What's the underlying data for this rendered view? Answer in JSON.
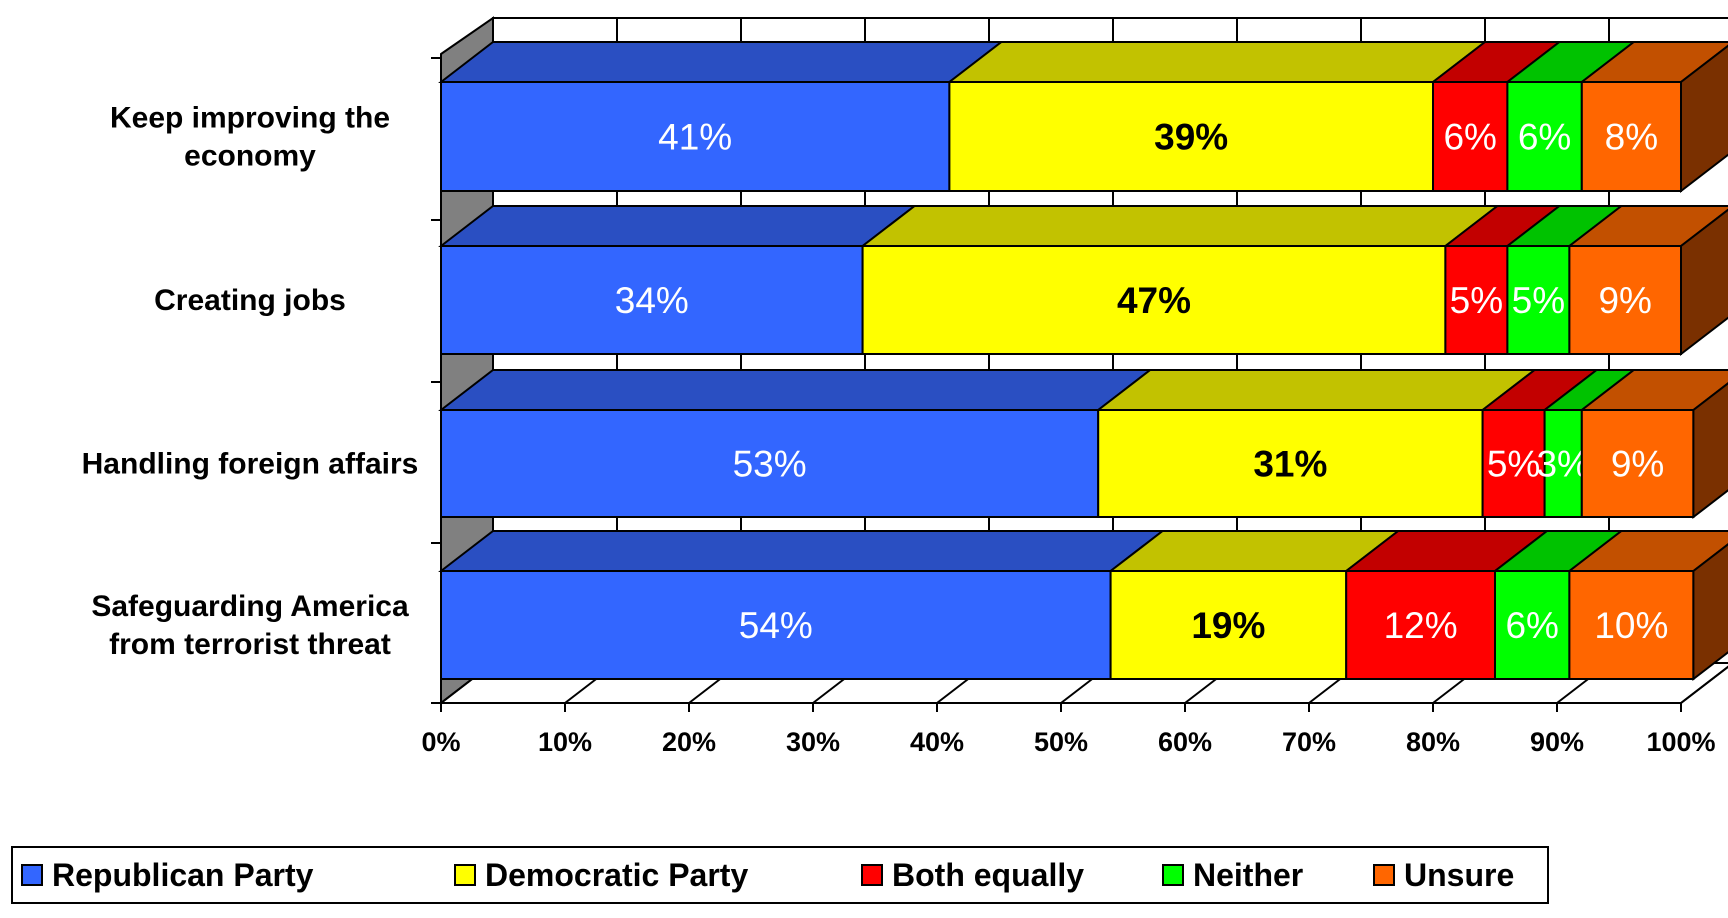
{
  "chart_data": {
    "type": "bar",
    "orientation": "horizontal",
    "stacked": true,
    "percent_stacked": true,
    "three_d": true,
    "categories": [
      [
        "Keep improving the",
        "economy"
      ],
      [
        "Creating jobs"
      ],
      [
        "Handling foreign affairs"
      ],
      [
        "Safeguarding America",
        "from terrorist threat"
      ]
    ],
    "series": [
      {
        "name": "Republican Party",
        "color": "#3366FF",
        "top_color": "#2A4FC2",
        "label_color": "#FFFFFF",
        "values": [
          41,
          34,
          53,
          54
        ],
        "labels": [
          "41%",
          "34%",
          "53%",
          "54%"
        ]
      },
      {
        "name": "Democratic Party",
        "color": "#FFFF00",
        "top_color": "#C2C200",
        "label_color": "#000000",
        "values": [
          39,
          47,
          31,
          19
        ],
        "labels": [
          "39%",
          "47%",
          "31%",
          "19%"
        ]
      },
      {
        "name": "Both equally",
        "color": "#FF0000",
        "top_color": "#C20000",
        "label_color": "#FFFFFF",
        "values": [
          6,
          5,
          5,
          12
        ],
        "labels": [
          "6%",
          "5%",
          "5%",
          "12%"
        ]
      },
      {
        "name": "Neither",
        "color": "#00FF00",
        "top_color": "#00C200",
        "label_color": "#FFFFFF",
        "values": [
          6,
          5,
          3,
          6
        ],
        "labels": [
          "6%",
          "5%",
          "3%",
          "6%"
        ]
      },
      {
        "name": "Unsure",
        "color": "#FF6600",
        "top_color": "#C25000",
        "label_color": "#FFFFFF",
        "values": [
          8,
          9,
          9,
          10
        ],
        "labels": [
          "8%",
          "9%",
          "9%",
          "10%"
        ]
      }
    ],
    "x_ticks": [
      "0%",
      "10%",
      "20%",
      "30%",
      "40%",
      "50%",
      "60%",
      "70%",
      "80%",
      "90%",
      "100%"
    ],
    "xlim": [
      0,
      100
    ],
    "grid": true,
    "legend_position": "bottom-left",
    "side_color": "#7A3000",
    "wall_color": "#808080"
  }
}
